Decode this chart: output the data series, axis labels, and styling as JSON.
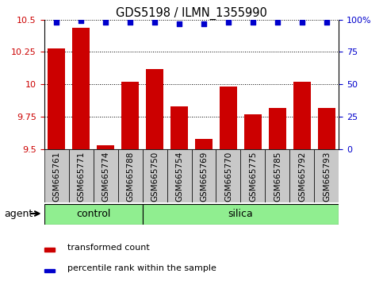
{
  "title": "GDS5198 / ILMN_1355990",
  "categories": [
    "GSM665761",
    "GSM665771",
    "GSM665774",
    "GSM665788",
    "GSM665750",
    "GSM665754",
    "GSM665769",
    "GSM665770",
    "GSM665775",
    "GSM665785",
    "GSM665792",
    "GSM665793"
  ],
  "bar_values": [
    10.28,
    10.44,
    9.53,
    10.02,
    10.12,
    9.83,
    9.58,
    9.98,
    9.77,
    9.82,
    10.02,
    9.82
  ],
  "percentile_values": [
    98,
    99,
    98,
    98,
    98,
    97,
    97,
    98,
    98,
    98,
    98,
    98
  ],
  "bar_color": "#cc0000",
  "percentile_color": "#0000cc",
  "ymin": 9.5,
  "ymax": 10.5,
  "y_ticks": [
    9.5,
    9.75,
    10.0,
    10.25,
    10.5
  ],
  "y_tick_labels": [
    "9.5",
    "9.75",
    "10",
    "10.25",
    "10.5"
  ],
  "y2min": 0,
  "y2max": 100,
  "y2_ticks": [
    0,
    25,
    50,
    75,
    100
  ],
  "y2_tick_labels": [
    "0",
    "25",
    "50",
    "75",
    "100%"
  ],
  "control_count": 4,
  "silica_count": 8,
  "group_label_control": "control",
  "group_label_silica": "silica",
  "agent_label": "agent",
  "legend_bar_label": "transformed count",
  "legend_percentile_label": "percentile rank within the sample",
  "xtick_bg": "#c8c8c8",
  "control_bg": "#90ee90",
  "silica_bg": "#90ee90",
  "bar_width": 0.7
}
